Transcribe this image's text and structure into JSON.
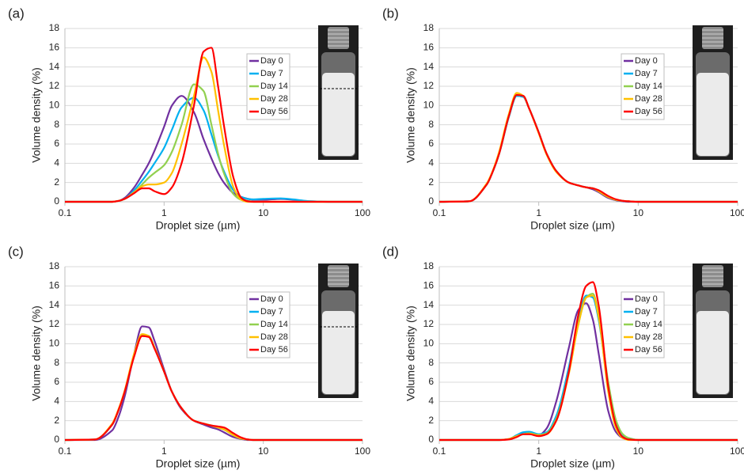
{
  "chart_data": [
    {
      "type": "line",
      "label": "(a)",
      "xlabel": "Droplet size (µm)",
      "ylabel": "Volume density (%)",
      "xscale": "log",
      "xlim": [
        0.1,
        100
      ],
      "ylim": [
        0,
        18
      ],
      "xticks": [
        0.1,
        1,
        10,
        100
      ],
      "yticks": [
        0,
        2,
        4,
        6,
        8,
        10,
        12,
        14,
        16,
        18
      ],
      "grid": true,
      "legend": "upper right",
      "x": [
        0.1,
        0.2,
        0.3,
        0.35,
        0.4,
        0.5,
        0.6,
        0.7,
        0.8,
        1,
        1.2,
        1.5,
        2,
        2.5,
        3,
        3.5,
        4,
        5,
        6,
        7,
        8,
        10,
        15,
        20,
        30,
        50,
        100
      ],
      "series": [
        {
          "name": "Day 0",
          "color": "#7030a0",
          "values": [
            0,
            0,
            0,
            0.1,
            0.4,
            1.5,
            2.8,
            4,
            5.3,
            7.8,
            10,
            11,
            9.3,
            6.5,
            4.5,
            3,
            2,
            0.9,
            0.5,
            0.3,
            0.2,
            0.2,
            0.3,
            0.2,
            0.05,
            0,
            0
          ]
        },
        {
          "name": "Day 7",
          "color": "#00b0f0",
          "values": [
            0,
            0,
            0,
            0.1,
            0.3,
            1.2,
            2.2,
            3.1,
            4,
            5.6,
            7.5,
            9.8,
            10.8,
            9.5,
            7,
            4.8,
            3.2,
            1.2,
            0.5,
            0.3,
            0.25,
            0.3,
            0.35,
            0.25,
            0.05,
            0,
            0
          ]
        },
        {
          "name": "Day 14",
          "color": "#92d050",
          "values": [
            0,
            0,
            0,
            0.1,
            0.3,
            1,
            1.8,
            2.5,
            3,
            3.8,
            5.2,
            8,
            12.2,
            11.5,
            8,
            5,
            3,
            0.8,
            0.2,
            0.1,
            0,
            0,
            0,
            0,
            0,
            0,
            0
          ]
        },
        {
          "name": "Day 28",
          "color": "#ffc000",
          "values": [
            0,
            0,
            0,
            0.1,
            0.3,
            1,
            1.6,
            1.8,
            1.8,
            2,
            3,
            6,
            11,
            15,
            13.5,
            9.5,
            6,
            1.5,
            0.2,
            0,
            0,
            0,
            0,
            0,
            0,
            0,
            0
          ]
        },
        {
          "name": "Day 56",
          "color": "#ff0000",
          "values": [
            0,
            0,
            0,
            0.1,
            0.3,
            0.9,
            1.4,
            1.4,
            1.1,
            0.8,
            1.5,
            4,
            10,
            15.6,
            16,
            12,
            8,
            2.5,
            0.4,
            0.05,
            0,
            0,
            0,
            0,
            0,
            0,
            0
          ]
        }
      ]
    },
    {
      "type": "line",
      "label": "(b)",
      "xlabel": "Droplet size (µm)",
      "ylabel": "Volume density (%)",
      "xscale": "log",
      "xlim": [
        0.1,
        100
      ],
      "ylim": [
        0,
        18
      ],
      "xticks": [
        0.1,
        1,
        10,
        100
      ],
      "yticks": [
        0,
        2,
        4,
        6,
        8,
        10,
        12,
        14,
        16,
        18
      ],
      "grid": true,
      "legend": "upper right",
      "x": [
        0.1,
        0.2,
        0.3,
        0.35,
        0.4,
        0.5,
        0.6,
        0.7,
        0.8,
        1,
        1.2,
        1.5,
        2,
        2.5,
        3,
        3.5,
        4,
        5,
        6,
        7,
        8,
        10,
        15,
        20,
        30,
        50,
        100
      ],
      "series": [
        {
          "name": "Day 0",
          "color": "#7030a0",
          "values": [
            0,
            0.05,
            1.8,
            3.3,
            5,
            8.8,
            11,
            10.9,
            9.7,
            7.2,
            5,
            3.2,
            2,
            1.7,
            1.5,
            1.3,
            1,
            0.4,
            0.15,
            0.05,
            0,
            0,
            0,
            0,
            0,
            0,
            0
          ]
        },
        {
          "name": "Day 7",
          "color": "#00b0f0",
          "values": [
            0,
            0.05,
            1.8,
            3.3,
            5,
            8.8,
            11,
            10.9,
            9.7,
            7.2,
            5,
            3.2,
            2,
            1.7,
            1.5,
            1.4,
            1.1,
            0.5,
            0.2,
            0.1,
            0.05,
            0,
            0,
            0,
            0,
            0,
            0
          ]
        },
        {
          "name": "Day 14",
          "color": "#92d050",
          "values": [
            0,
            0.05,
            1.8,
            3.3,
            5,
            8.9,
            11.1,
            11,
            9.7,
            7.2,
            5,
            3.2,
            2,
            1.7,
            1.5,
            1.4,
            1.1,
            0.5,
            0.2,
            0.1,
            0.05,
            0,
            0,
            0,
            0,
            0,
            0
          ]
        },
        {
          "name": "Day 28",
          "color": "#ffc000",
          "values": [
            0,
            0.05,
            1.9,
            3.4,
            5.2,
            9.1,
            11.3,
            11,
            9.7,
            7.1,
            4.9,
            3.1,
            2,
            1.7,
            1.5,
            1.4,
            1.1,
            0.5,
            0.2,
            0.1,
            0.05,
            0,
            0,
            0,
            0,
            0,
            0
          ]
        },
        {
          "name": "Day 56",
          "color": "#ff0000",
          "values": [
            0,
            0.05,
            1.8,
            3.3,
            5,
            8.9,
            11.1,
            11,
            9.7,
            7.2,
            5,
            3.2,
            2,
            1.7,
            1.5,
            1.4,
            1.2,
            0.6,
            0.25,
            0.1,
            0.05,
            0,
            0,
            0,
            0,
            0,
            0
          ]
        }
      ]
    },
    {
      "type": "line",
      "label": "(c)",
      "xlabel": "Droplet size (µm)",
      "ylabel": "Volume density (%)",
      "xscale": "log",
      "xlim": [
        0.1,
        100
      ],
      "ylim": [
        0,
        18
      ],
      "xticks": [
        0.1,
        1,
        10,
        100
      ],
      "yticks": [
        0,
        2,
        4,
        6,
        8,
        10,
        12,
        14,
        16,
        18
      ],
      "grid": true,
      "legend": "upper right",
      "x": [
        0.1,
        0.2,
        0.3,
        0.35,
        0.4,
        0.5,
        0.6,
        0.7,
        0.8,
        1,
        1.2,
        1.5,
        2,
        2.5,
        3,
        3.5,
        4,
        5,
        6,
        7,
        8,
        10,
        15,
        20,
        30,
        50,
        100
      ],
      "series": [
        {
          "name": "Day 0",
          "color": "#7030a0",
          "values": [
            0,
            0,
            1,
            2.5,
            4.5,
            9,
            11.8,
            11.7,
            10.3,
            7.3,
            5,
            3.2,
            2,
            1.6,
            1.3,
            1.1,
            0.8,
            0.3,
            0.1,
            0,
            0,
            0,
            0,
            0,
            0,
            0,
            0
          ]
        },
        {
          "name": "Day 7",
          "color": "#00b0f0",
          "values": [
            0,
            0.05,
            1.6,
            3.2,
            5,
            8.8,
            10.9,
            10.8,
            9.6,
            7.1,
            5,
            3.3,
            2,
            1.7,
            1.5,
            1.3,
            1.1,
            0.5,
            0.15,
            0.05,
            0,
            0,
            0,
            0,
            0,
            0,
            0
          ]
        },
        {
          "name": "Day 14",
          "color": "#92d050",
          "values": [
            0,
            0.05,
            1.6,
            3.2,
            5,
            8.8,
            10.9,
            10.8,
            9.6,
            7.1,
            5,
            3.3,
            2,
            1.7,
            1.5,
            1.3,
            1.1,
            0.5,
            0.15,
            0.05,
            0,
            0,
            0,
            0,
            0,
            0,
            0
          ]
        },
        {
          "name": "Day 28",
          "color": "#ffc000",
          "values": [
            0,
            0.05,
            1.7,
            3.3,
            5.1,
            9,
            11,
            10.8,
            9.6,
            7.1,
            5,
            3.3,
            2,
            1.7,
            1.5,
            1.3,
            1.1,
            0.5,
            0.15,
            0.05,
            0,
            0,
            0,
            0,
            0,
            0,
            0
          ]
        },
        {
          "name": "Day 56",
          "color": "#ff0000",
          "values": [
            0,
            0.05,
            1.6,
            3.2,
            5,
            8.7,
            10.8,
            10.7,
            9.5,
            7.1,
            5,
            3.3,
            2,
            1.7,
            1.5,
            1.4,
            1.3,
            0.7,
            0.25,
            0.05,
            0,
            0,
            0,
            0,
            0,
            0,
            0
          ]
        }
      ]
    },
    {
      "type": "line",
      "label": "(d)",
      "xlabel": "Droplet size (µm)",
      "ylabel": "Volume density (%)",
      "xscale": "log",
      "xlim": [
        0.1,
        100
      ],
      "ylim": [
        0,
        18
      ],
      "xticks": [
        0.1,
        1,
        10,
        100
      ],
      "yticks": [
        0,
        2,
        4,
        6,
        8,
        10,
        12,
        14,
        16,
        18
      ],
      "grid": true,
      "legend": "upper right",
      "x": [
        0.1,
        0.2,
        0.3,
        0.35,
        0.4,
        0.5,
        0.6,
        0.7,
        0.8,
        1,
        1.2,
        1.5,
        2,
        2.5,
        3,
        3.5,
        4,
        5,
        6,
        7,
        8,
        10,
        15,
        20,
        30,
        50,
        100
      ],
      "series": [
        {
          "name": "Day 0",
          "color": "#7030a0",
          "values": [
            0,
            0,
            0,
            0,
            0,
            0.1,
            0.4,
            0.6,
            0.6,
            0.5,
            1.2,
            4,
            9.5,
            13.5,
            14.2,
            12.5,
            9,
            3,
            0.8,
            0.2,
            0.05,
            0,
            0,
            0,
            0,
            0,
            0
          ]
        },
        {
          "name": "Day 7",
          "color": "#00b0f0",
          "values": [
            0,
            0,
            0,
            0,
            0,
            0.1,
            0.5,
            0.8,
            0.85,
            0.6,
            0.8,
            2.5,
            7.5,
            12.5,
            15,
            14.8,
            12.5,
            5.5,
            1.8,
            0.5,
            0.2,
            0,
            0,
            0,
            0,
            0,
            0
          ]
        },
        {
          "name": "Day 14",
          "color": "#92d050",
          "values": [
            0,
            0,
            0,
            0,
            0,
            0.1,
            0.4,
            0.6,
            0.7,
            0.5,
            0.7,
            2.2,
            7,
            12,
            14.8,
            15.2,
            13,
            6,
            2,
            0.6,
            0.2,
            0,
            0,
            0,
            0,
            0,
            0
          ]
        },
        {
          "name": "Day 28",
          "color": "#ffc000",
          "values": [
            0,
            0,
            0,
            0,
            0,
            0.1,
            0.4,
            0.6,
            0.65,
            0.5,
            0.6,
            2,
            6.8,
            12,
            14.8,
            15,
            12.8,
            5,
            1.2,
            0.2,
            0,
            0,
            0,
            0,
            0,
            0,
            0
          ]
        },
        {
          "name": "Day 56",
          "color": "#ff0000",
          "values": [
            0,
            0,
            0,
            0,
            0,
            0.05,
            0.3,
            0.6,
            0.6,
            0.4,
            0.6,
            2,
            7,
            13,
            16,
            16.4,
            14,
            5.5,
            1.5,
            0.3,
            0.05,
            0,
            0,
            0,
            0,
            0,
            0
          ]
        }
      ]
    }
  ]
}
